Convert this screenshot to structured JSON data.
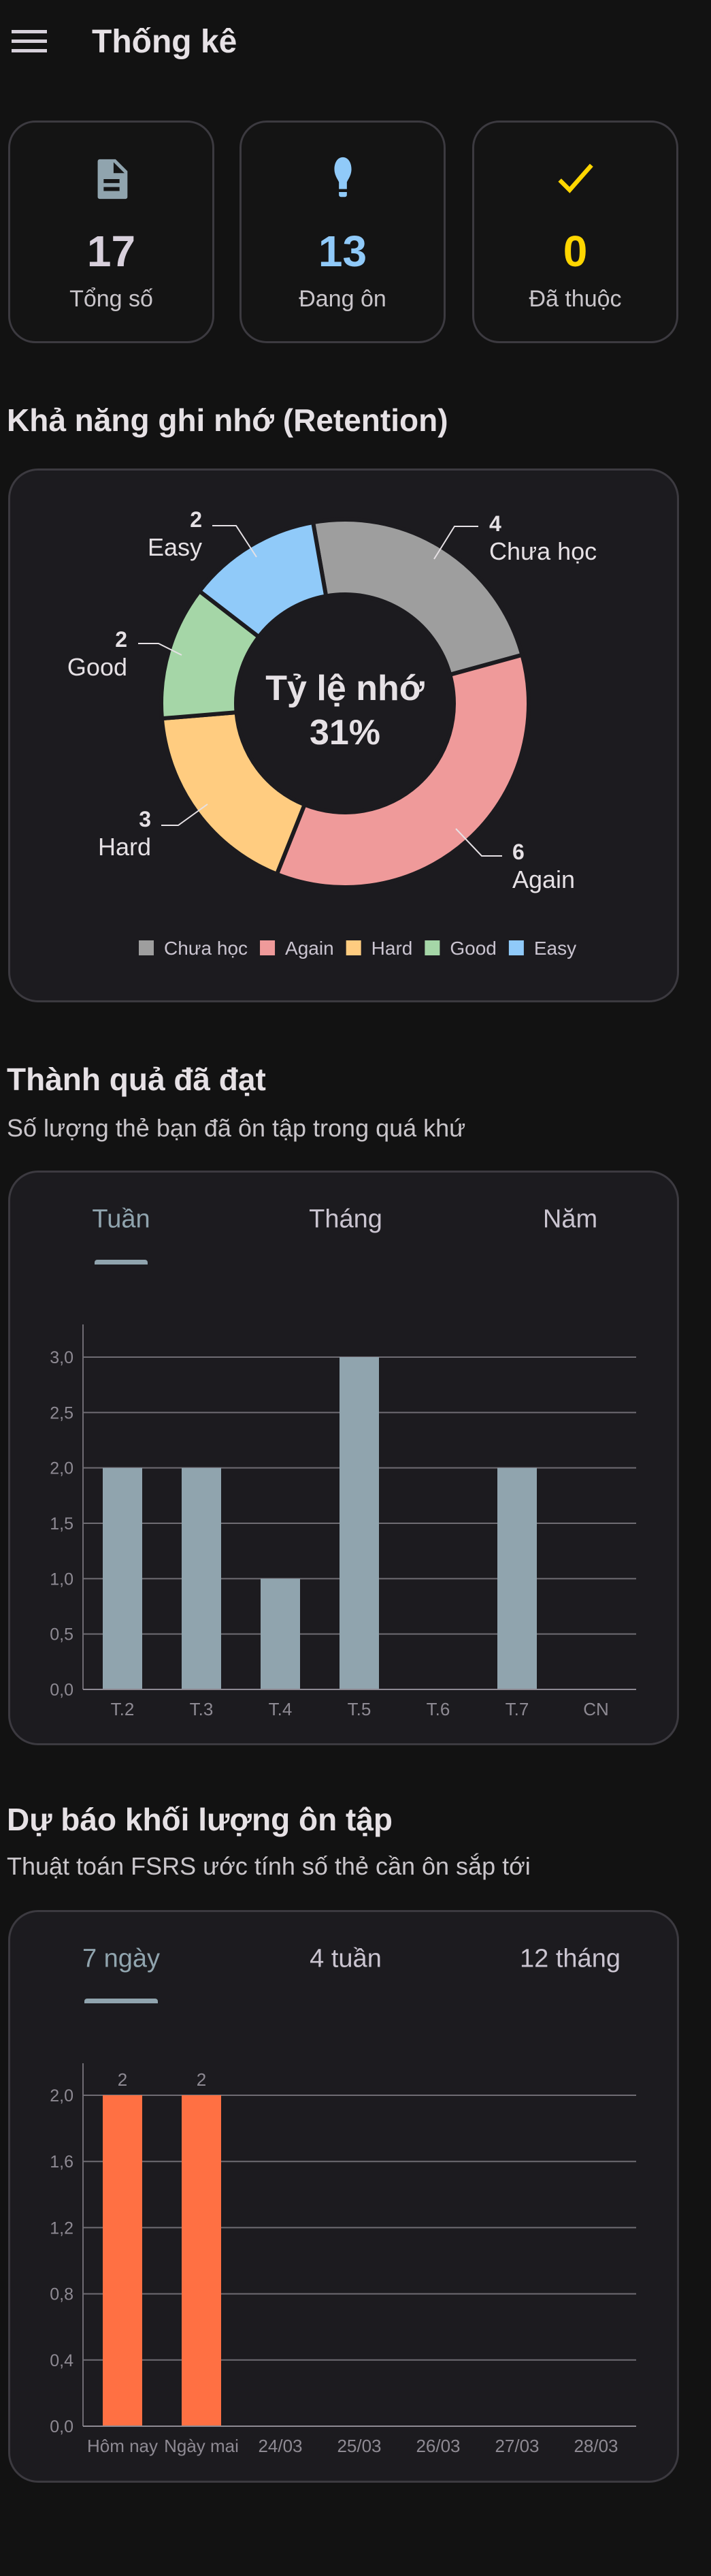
{
  "header": {
    "title": "Thống kê",
    "menu_icon": "hamburger-menu-icon"
  },
  "stats": [
    {
      "icon": "document-icon",
      "value": "17",
      "label": "Tổng số",
      "color": "#d8d0dc",
      "icon_color": "#90a4ae"
    },
    {
      "icon": "lightbulb-icon",
      "value": "13",
      "label": "Đang ôn",
      "color": "#90caf9",
      "icon_color": "#90caf9"
    },
    {
      "icon": "check-icon",
      "value": "0",
      "label": "Đã thuộc",
      "color": "#ffd600",
      "icon_color": "#ffd600"
    }
  ],
  "retention": {
    "title": "Khả năng ghi nhớ (Retention)",
    "center_label": "Tỷ lệ nhớ",
    "center_value": "31%"
  },
  "achievement": {
    "title": "Thành quả đã đạt",
    "subtitle": "Số lượng thẻ bạn đã ôn tập trong quá khứ",
    "tabs": [
      {
        "label": "Tuần",
        "active": true
      },
      {
        "label": "Tháng",
        "active": false
      },
      {
        "label": "Năm",
        "active": false
      }
    ]
  },
  "forecast": {
    "title": "Dự báo khối lượng ôn tập",
    "subtitle": "Thuật toán FSRS ước tính số thẻ cần ôn sắp tới",
    "tabs": [
      {
        "label": "7 ngày",
        "active": true
      },
      {
        "label": "4 tuần",
        "active": false
      },
      {
        "label": "12 tháng",
        "active": false
      }
    ]
  },
  "chart_data": [
    {
      "type": "pie",
      "variant": "donut",
      "categories": [
        "Chưa học",
        "Again",
        "Hard",
        "Good",
        "Easy"
      ],
      "values": [
        4,
        6,
        3,
        2,
        2
      ],
      "colors": [
        "#9e9e9e",
        "#ef9a9a",
        "#ffcc80",
        "#a5d6a7",
        "#90caf9"
      ],
      "legend": "bottom"
    },
    {
      "type": "bar",
      "categories": [
        "T.2",
        "T.3",
        "T.4",
        "T.5",
        "T.6",
        "T.7",
        "CN"
      ],
      "values": [
        2,
        2,
        1,
        3,
        0,
        2,
        0
      ],
      "ylim": [
        0,
        3.3
      ],
      "yticks": [
        "0,0",
        "0,5",
        "1,0",
        "1,5",
        "2,0",
        "2,5",
        "3,0"
      ],
      "ytick_values": [
        0,
        0.5,
        1,
        1.5,
        2,
        2.5,
        3
      ],
      "color": "#90a4ae",
      "grid": true
    },
    {
      "type": "bar",
      "categories": [
        "Hôm nay",
        "Ngày mai",
        "24/03",
        "25/03",
        "26/03",
        "27/03",
        "28/03"
      ],
      "values": [
        2,
        2,
        0,
        0,
        0,
        0,
        0
      ],
      "data_labels": [
        "2",
        "2",
        "",
        "",
        "",
        "",
        ""
      ],
      "ylim": [
        0,
        2.2
      ],
      "yticks": [
        "0,0",
        "0,4",
        "0,8",
        "1,2",
        "1,6",
        "2,0"
      ],
      "ytick_values": [
        0,
        0.4,
        0.8,
        1.2,
        1.6,
        2.0
      ],
      "color": "#ff7043",
      "grid": true
    }
  ]
}
